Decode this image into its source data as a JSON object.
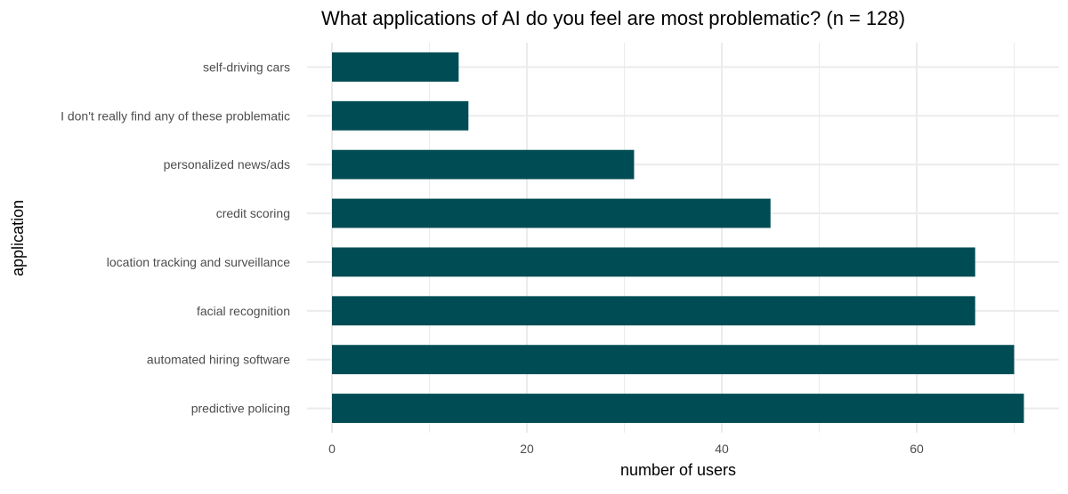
{
  "chart_data": {
    "type": "bar",
    "orientation": "horizontal",
    "title": "What applications of AI do you feel are most problematic? (n = 128)",
    "xlabel": "number of users",
    "ylabel": "application",
    "categories": [
      "self-driving cars",
      "I don't really find any of these problematic",
      "personalized news/ads",
      "credit scoring",
      "location tracking and surveillance",
      "facial recognition",
      "automated hiring software",
      "predictive policing"
    ],
    "values": [
      13,
      14,
      31,
      45,
      66,
      66,
      70,
      71
    ],
    "x_ticks": [
      0,
      20,
      40,
      60
    ],
    "x_tick_labels": [
      "0",
      "20",
      "40",
      "60"
    ],
    "xlim": [
      0,
      71
    ],
    "grid": true,
    "legend": "none",
    "colors": {
      "bar": "#004C54",
      "grid": "#EBEBEB",
      "text": "#4D4D4D"
    }
  }
}
